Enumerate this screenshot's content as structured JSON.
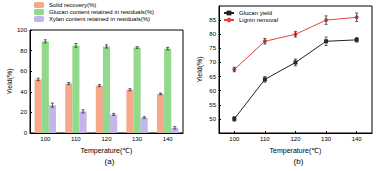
{
  "chart_data": [
    {
      "type": "bar",
      "title": "(a)",
      "x_label": "Temperature(℃)",
      "y_label": "Yield(%)",
      "categories": [
        "100",
        "110",
        "120",
        "130",
        "140"
      ],
      "series": [
        {
          "name": "Solid recovery(%)",
          "color": "#f5a88a",
          "values": [
            52,
            48,
            46,
            42,
            38
          ],
          "errors": [
            1.2,
            1.0,
            1.0,
            1.0,
            0.8
          ]
        },
        {
          "name": "Glucan content retained in residuals(%)",
          "color": "#93d98c",
          "values": [
            89,
            85,
            84,
            83,
            82
          ],
          "errors": [
            1.5,
            1.8,
            1.5,
            0.8,
            1.2
          ]
        },
        {
          "name": "Xylan content retained in residuals(%)",
          "color": "#c4b6ea",
          "values": [
            27,
            21,
            18,
            15,
            5
          ],
          "errors": [
            2.0,
            1.5,
            1.0,
            0.8,
            1.2
          ]
        }
      ],
      "ylim": [
        0,
        100
      ],
      "yticks": [
        0,
        20,
        40,
        60,
        80,
        100
      ],
      "grid": false,
      "legend": "top left"
    },
    {
      "type": "line",
      "title": "(b)",
      "x_label": "Temperature(℃)",
      "y_label": "Yield(%)",
      "categories": [
        "100",
        "110",
        "120",
        "130",
        "140"
      ],
      "series": [
        {
          "name": "Glucan yield",
          "color": "#222222",
          "marker": "square",
          "values": [
            50,
            64,
            70,
            77.5,
            78
          ],
          "errors": [
            0.8,
            1.0,
            1.2,
            1.5,
            0.8
          ]
        },
        {
          "name": "Lignin removal",
          "color": "#e8413c",
          "marker": "circle",
          "values": [
            67.5,
            77.5,
            80,
            85,
            86
          ],
          "errors": [
            0.8,
            1.0,
            1.0,
            1.5,
            1.5
          ]
        }
      ],
      "ylim": [
        45,
        90
      ],
      "yticks": [
        50,
        55,
        60,
        65,
        70,
        75,
        80,
        85
      ],
      "grid": false,
      "legend": "upper left"
    }
  ]
}
